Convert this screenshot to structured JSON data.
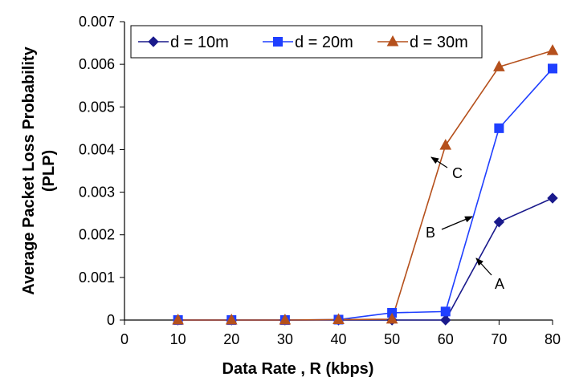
{
  "chart_data": {
    "type": "line",
    "title": "",
    "xlabel": "Data Rate , R (kbps)",
    "ylabel": "Average Packet Loss Probability (PLP)",
    "ylabel_lines": [
      "Average Packet Loss Probability",
      "(PLP)"
    ],
    "xlim": [
      0,
      80
    ],
    "ylim": [
      0,
      0.007
    ],
    "x_ticks": [
      "0",
      "10",
      "20",
      "30",
      "40",
      "50",
      "60",
      "70",
      "80"
    ],
    "y_ticks": [
      "0",
      "0.001",
      "0.002",
      "0.003",
      "0.004",
      "0.005",
      "0.006",
      "0.007"
    ],
    "x": [
      10,
      20,
      30,
      40,
      50,
      60,
      70,
      80
    ],
    "grid": false,
    "legend_position": "top",
    "series": [
      {
        "name": "d = 10m",
        "marker": "diamond",
        "color": "#1a1a8c",
        "values": [
          0,
          0,
          0,
          0,
          0,
          0,
          0.0023,
          0.00286
        ]
      },
      {
        "name": "d = 20m",
        "marker": "square",
        "color": "#1f3fff",
        "values": [
          0,
          0,
          0,
          1e-05,
          0.00017,
          0.0002,
          0.0045,
          0.0059
        ]
      },
      {
        "name": "d = 30m",
        "marker": "triangle",
        "color": "#b5501c",
        "values": [
          0,
          0,
          0,
          1e-05,
          2e-05,
          0.0041,
          0.00594,
          0.00632
        ]
      }
    ],
    "annotations": [
      {
        "label": "A"
      },
      {
        "label": "B"
      },
      {
        "label": "C"
      }
    ]
  }
}
